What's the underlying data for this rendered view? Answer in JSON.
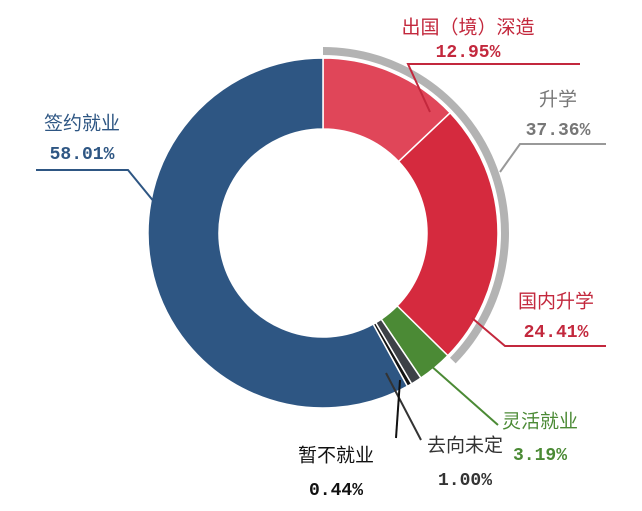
{
  "chart_data": {
    "type": "pie",
    "categories": [
      "出国（境）深造",
      "国内升学",
      "灵活就业",
      "去向未定",
      "暂不就业",
      "签约就业"
    ],
    "values": [
      12.95,
      24.41,
      3.19,
      1.0,
      0.44,
      58.01
    ],
    "value_labels": [
      "12.95%",
      "24.41%",
      "3.19%",
      "1.00%",
      "0.44%",
      "58.01%"
    ],
    "colors": [
      "#e04659",
      "#d52a3e",
      "#4b8a35",
      "#3d4147",
      "#141414",
      "#2e5683"
    ],
    "groups": [
      {
        "name": "升学",
        "value": 37.36,
        "value_label": "37.36%",
        "color": "#b3b3b3"
      }
    ]
  }
}
